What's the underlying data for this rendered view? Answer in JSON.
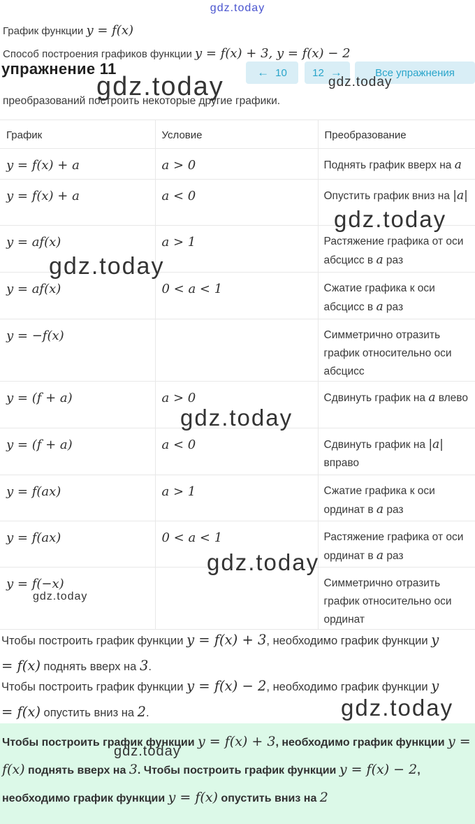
{
  "site": {
    "link": "gdz.today",
    "watermark": "gdz.today"
  },
  "colors": {
    "link_blue": "#4a55cf",
    "accent_cyan": "#2aa5ca",
    "accent_cyan_bg": "#d9eef6",
    "highlight_green_bg": "#dcf9e8",
    "table_border": "#e8e8e8"
  },
  "intro": {
    "line1": [
      {
        "t": "График функции "
      },
      {
        "m": "y = f(x)"
      }
    ],
    "line2": [
      {
        "t": "Способ построения графиков функции "
      },
      {
        "m": "y = f(x) + 3, y = f(x) − 2"
      }
    ],
    "line3": "преобразований построить некоторые другие графики."
  },
  "exercise": {
    "heading": "упражнение 11",
    "prev_arrow": "←",
    "prev_label": "10",
    "next_label": "12",
    "next_arrow": "→",
    "all_label": "Все упражнения"
  },
  "table": {
    "headers": [
      "График",
      "Условие",
      "Преобразование"
    ],
    "rows": [
      {
        "graph": "y = f(x) + a",
        "condition": "a > 0",
        "transform": [
          {
            "t": "Поднять график вверх на "
          },
          {
            "m": "a"
          }
        ]
      },
      {
        "graph": "y = f(x) + a",
        "condition": "a < 0",
        "transform": [
          {
            "t": "Опустить график вниз на "
          },
          {
            "m": "|a|"
          }
        ]
      },
      {
        "graph": "y = af(x)",
        "condition": "a > 1",
        "transform": [
          {
            "t": "Растяжение графика от оси абсцисс в "
          },
          {
            "m": "a"
          },
          {
            "t": " раз"
          }
        ]
      },
      {
        "graph": "y = af(x)",
        "condition": "0 < a < 1",
        "transform": [
          {
            "t": "Сжатие графика к оси абсцисс в "
          },
          {
            "m": "a"
          },
          {
            "t": " раз"
          }
        ]
      },
      {
        "graph": "y = −f(x)",
        "condition": "",
        "transform": [
          {
            "t": "Симметрично отразить график относительно оси абсцисс"
          }
        ]
      },
      {
        "graph": "y = (f + a)",
        "condition": "a > 0",
        "transform": [
          {
            "t": "Сдвинуть график на "
          },
          {
            "m": "a"
          },
          {
            "t": " влево"
          }
        ]
      },
      {
        "graph": "y = (f + a)",
        "condition": "a < 0",
        "transform": [
          {
            "t": "Сдвинуть график на "
          },
          {
            "m": "|a|"
          },
          {
            "t": " вправо"
          }
        ]
      },
      {
        "graph": "y = f(ax)",
        "condition": "a > 1",
        "transform": [
          {
            "t": "Сжатие графика к оси ординат в "
          },
          {
            "m": "a"
          },
          {
            "t": " раз"
          }
        ]
      },
      {
        "graph": "y = f(ax)",
        "condition": "0 < a < 1",
        "transform": [
          {
            "t": "Растяжение графика от оси ординат в "
          },
          {
            "m": "a"
          },
          {
            "t": " раз"
          }
        ]
      },
      {
        "graph": "y = f(−x)",
        "condition": "",
        "transform": [
          {
            "t": "Симметрично отразить график относительно оси ординат"
          }
        ]
      }
    ]
  },
  "paragraphs": {
    "p1": [
      {
        "t": "Чтобы построить график функции "
      },
      {
        "m": "y = f(x) + 3"
      },
      {
        "t": ", необходимо график функции "
      },
      {
        "m": "y = f(x)"
      },
      {
        "t": " поднять вверх на "
      },
      {
        "m": "3"
      },
      {
        "t": "."
      }
    ],
    "p2": [
      {
        "t": "Чтобы построить график функции "
      },
      {
        "m": "y = f(x) − 2"
      },
      {
        "t": ", необходимо график функции "
      },
      {
        "m": "y = f(x)"
      },
      {
        "t": " опустить вниз на "
      },
      {
        "m": "2"
      },
      {
        "t": "."
      }
    ]
  },
  "highlight": {
    "text": [
      {
        "t": "Чтобы построить график функции "
      },
      {
        "m": "y = f(x) + 3"
      },
      {
        "t": ", необходимо график функции "
      },
      {
        "m": "y = f(x)"
      },
      {
        "t": " поднять вверх на "
      },
      {
        "m": "3"
      },
      {
        "t": ". Чтобы построить график функции "
      },
      {
        "m": "y = f(x) − 2"
      },
      {
        "t": ", необходимо график функции "
      },
      {
        "m": "y = f(x)"
      },
      {
        "t": " опустить вниз на "
      },
      {
        "m": "2"
      }
    ],
    "trailing": "."
  }
}
